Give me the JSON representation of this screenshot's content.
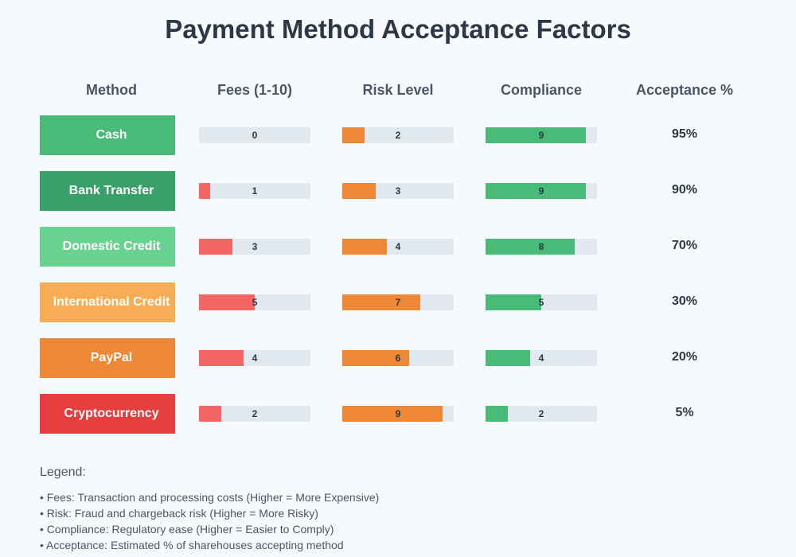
{
  "chart_data": {
    "type": "table",
    "title": "Payment Method Acceptance Factors",
    "columns": [
      "Method",
      "Fees (1-10)",
      "Risk Level",
      "Compliance",
      "Acceptance %"
    ],
    "scale_max": 10,
    "rows": [
      {
        "method": "Cash",
        "color": "#48bb78",
        "fees": 0,
        "risk": 2,
        "compliance": 9,
        "acceptance": "95%"
      },
      {
        "method": "Bank Transfer",
        "color": "#38a169",
        "fees": 1,
        "risk": 3,
        "compliance": 9,
        "acceptance": "90%"
      },
      {
        "method": "Domestic Credit",
        "color": "#68d391",
        "fees": 3,
        "risk": 4,
        "compliance": 8,
        "acceptance": "70%"
      },
      {
        "method": "International Credit",
        "color": "#f6ad55",
        "fees": 5,
        "risk": 7,
        "compliance": 5,
        "acceptance": "30%"
      },
      {
        "method": "PayPal",
        "color": "#ed8936",
        "fees": 4,
        "risk": 6,
        "compliance": 4,
        "acceptance": "20%"
      },
      {
        "method": "Cryptocurrency",
        "color": "#e53e3e",
        "fees": 2,
        "risk": 9,
        "compliance": 2,
        "acceptance": "5%"
      }
    ],
    "bar_colors": {
      "fees": "#f56565",
      "risk": "#ed8936",
      "compliance": "#48bb78",
      "track": "#e2e8f0"
    }
  },
  "legend": {
    "title": "Legend:",
    "items": [
      "• Fees: Transaction and processing costs (Higher = More Expensive)",
      "• Risk: Fraud and chargeback risk (Higher = More Risky)",
      "• Compliance: Regulatory ease (Higher = Easier to Comply)",
      "• Acceptance: Estimated % of sharehouses accepting method"
    ]
  }
}
